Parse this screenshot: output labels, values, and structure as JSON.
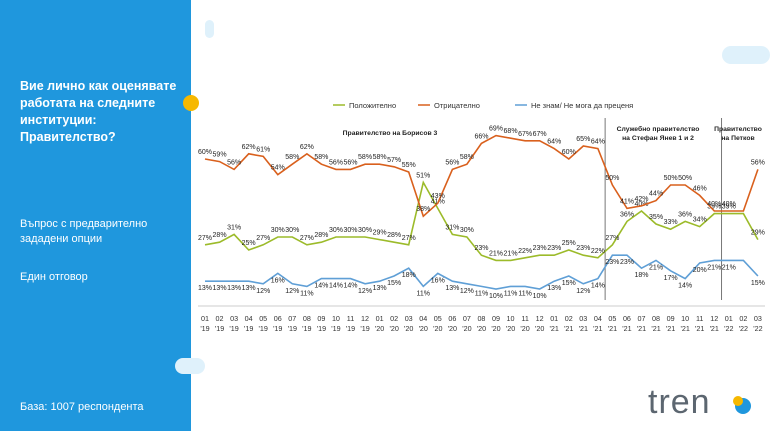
{
  "sidebar": {
    "title": "Вие лично как оценявате работата на следните институции: Правителство?",
    "question_type": "Въпрос с предварително зададени опции",
    "answer_type": "Един отговор",
    "base": "База:  1007 респондента"
  },
  "logo": {
    "text": "tren"
  },
  "colors": {
    "sidebar": "#1f97dd",
    "accent": "#f6b800",
    "positive": "#9cbb2a",
    "negative": "#d9601d",
    "dontknow": "#5f9fd6"
  },
  "chart_data": {
    "type": "line",
    "categories": [
      "01 '19",
      "02 '19",
      "03 '19",
      "04 '19",
      "05 '19",
      "06 '19",
      "07 '19",
      "08 '19",
      "09 '19",
      "10 '19",
      "11 '19",
      "12 '19",
      "01 '20",
      "02 '20",
      "03 '20",
      "04 '20",
      "05 '20",
      "06 '20",
      "07 '20",
      "08 '20",
      "09 '20",
      "10 '20",
      "11 '20",
      "12 '20",
      "01 '21",
      "02 '21",
      "03 '21",
      "04 '21",
      "05 '21",
      "06 '21",
      "07 '21",
      "08 '21",
      "09 '21",
      "10 '21",
      "11 '21",
      "12 '21",
      "01 '22",
      "02 '22",
      "03 '22"
    ],
    "series": [
      {
        "name": "Положително",
        "color": "#9cbb2a",
        "values": [
          27,
          28,
          31,
          25,
          27,
          30,
          30,
          27,
          28,
          30,
          30,
          30,
          29,
          28,
          27,
          51,
          41,
          31,
          30,
          23,
          21,
          21,
          22,
          23,
          23,
          25,
          23,
          22,
          27,
          36,
          40,
          35,
          33,
          36,
          34,
          39,
          39,
          39,
          29
        ],
        "labels": [
          "27%",
          "28%",
          "31%",
          "25%",
          "27%",
          "30%",
          "30%",
          "27%",
          "28%",
          "30%",
          "30%",
          "30%",
          "29%",
          "28%",
          "27%",
          "51%",
          "41%",
          "31%",
          "30%",
          "23%",
          "21%",
          "21%",
          "22%",
          "23%",
          "23%",
          "25%",
          "23%",
          "22%",
          "27%",
          "36%",
          "40%",
          "35%",
          "33%",
          "36%",
          "34%",
          "39%",
          "39%",
          "",
          "29%"
        ]
      },
      {
        "name": "Отрицателно",
        "color": "#d9601d",
        "values": [
          60,
          59,
          56,
          62,
          61,
          54,
          58,
          62,
          58,
          56,
          56,
          58,
          58,
          57,
          55,
          38,
          43,
          56,
          58,
          66,
          69,
          68,
          67,
          67,
          64,
          60,
          65,
          64,
          50,
          41,
          42,
          44,
          50,
          50,
          46,
          40,
          40,
          40,
          56
        ],
        "labels": [
          "60%",
          "59%",
          "56%",
          "62%",
          "61%",
          "54%",
          "58%",
          "62%",
          "58%",
          "56%",
          "56%",
          "58%",
          "58%",
          "57%",
          "55%",
          "38%",
          "43%",
          "56%",
          "58%",
          "66%",
          "69%",
          "68%",
          "67%",
          "67%",
          "64%",
          "60%",
          "65%",
          "64%",
          "50%",
          "41%",
          "42%",
          "44%",
          "50%",
          "50%",
          "46%",
          "40%",
          "40%",
          "",
          "56%"
        ]
      },
      {
        "name": "Не знам/ Не мога да преценя",
        "color": "#5f9fd6",
        "values": [
          13,
          13,
          13,
          13,
          12,
          16,
          12,
          11,
          14,
          14,
          14,
          12,
          13,
          15,
          18,
          11,
          16,
          13,
          12,
          11,
          10,
          11,
          11,
          10,
          13,
          15,
          12,
          14,
          23,
          23,
          18,
          21,
          17,
          14,
          20,
          21,
          21,
          21,
          15
        ],
        "labels": [
          "13%",
          "13%",
          "13%",
          "13%",
          "12%",
          "16%",
          "12%",
          "11%",
          "14%",
          "14%",
          "14%",
          "12%",
          "13%",
          "15%",
          "18%",
          "11%",
          "16%",
          "13%",
          "12%",
          "11%",
          "10%",
          "11%",
          "11%",
          "10%",
          "13%",
          "15%",
          "12%",
          "14%",
          "23%",
          "23%",
          "18%",
          "21%",
          "17%",
          "14%",
          "20%",
          "21%",
          "21%",
          "",
          "15%"
        ]
      }
    ],
    "periods": [
      {
        "label": "Правителство на Борисов 3",
        "from": 0,
        "to": 27
      },
      {
        "label": "Служебно правителство на Стефан Янев 1 и 2",
        "from": 28,
        "to": 35
      },
      {
        "label": "Правителство на Петков",
        "from": 36,
        "to": 38
      }
    ],
    "ylim": [
      0,
      75
    ],
    "legend_position": "top"
  }
}
